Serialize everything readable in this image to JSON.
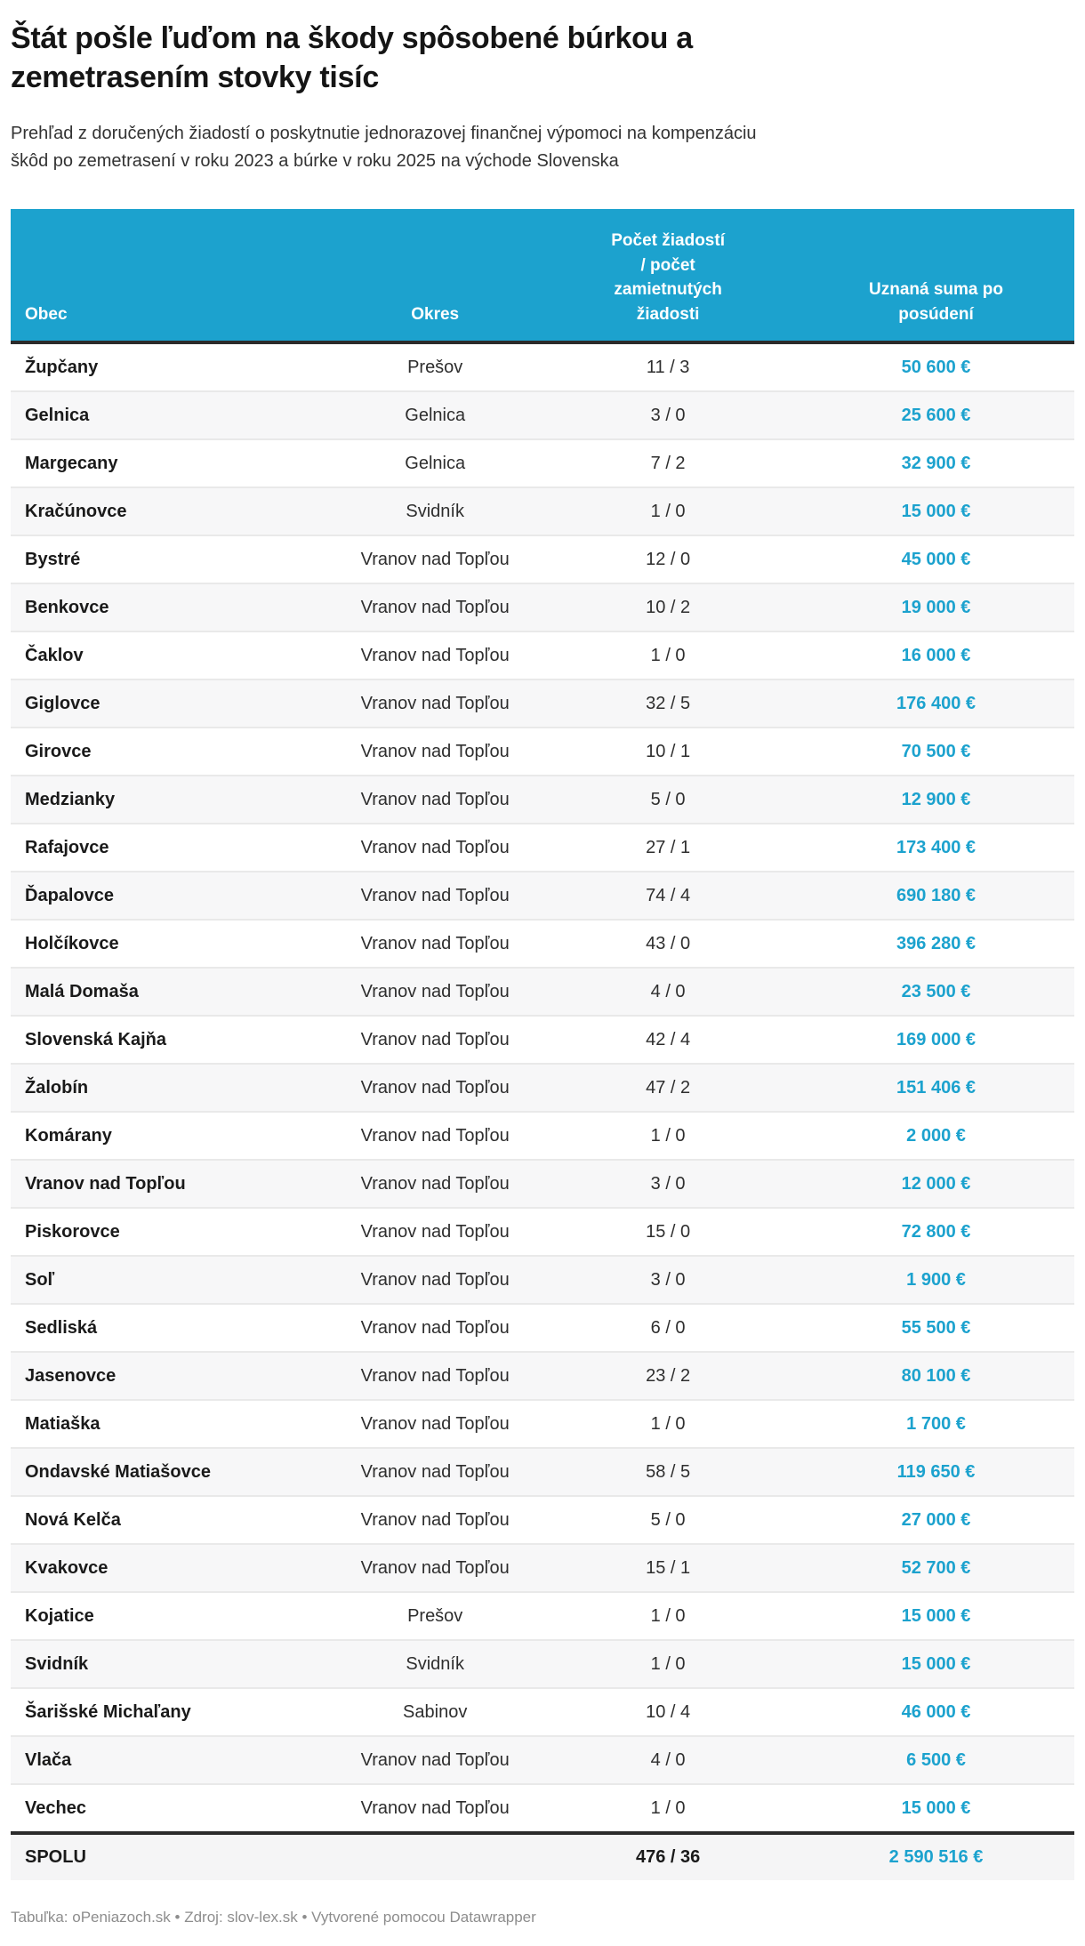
{
  "header": {
    "title_lines": [
      "Štát pošle ľuďom na škody spôsobené búrkou a",
      "zemetrasením stovky tisíc"
    ],
    "subtitle_lines": [
      "Prehľad z doručených žiadostí o poskytnutie jednorazovej finančnej výpomoci na kompenzáciu",
      "škôd po zemetrasení v roku 2023 a búrke v roku 2025 na východe Slovenska"
    ]
  },
  "table": {
    "headers": {
      "obec": "Obec",
      "okres": "Okres",
      "pocet": "Počet žiadostí\n/ počet\nzamietnutých\nžiadosti",
      "suma": "Uznaná suma po\nposúdení"
    }
  },
  "chart_data": {
    "type": "table",
    "title": "Štát pošle ľuďom na škody spôsobené búrkou a zemetrasením stovky tisíc",
    "subtitle": "Prehľad z doručených žiadostí o poskytnutie jednorazovej finančnej výpomoci na kompenzáciu škôd po zemetrasení v roku 2023 a búrke v roku 2025 na východe Slovenska",
    "columns": [
      "Obec",
      "Okres",
      "Počet žiadostí / počet zamietnutých žiadosti",
      "Uznaná suma po posúdení"
    ],
    "rows": [
      [
        "Župčany",
        "Prešov",
        "11 / 3",
        "50 600 €"
      ],
      [
        "Gelnica",
        "Gelnica",
        "3 / 0",
        "25 600 €"
      ],
      [
        "Margecany",
        "Gelnica",
        "7 / 2",
        "32 900 €"
      ],
      [
        "Kračúnovce",
        "Svidník",
        "1 / 0",
        "15 000 €"
      ],
      [
        "Bystré",
        "Vranov nad Topľou",
        "12 / 0",
        "45 000 €"
      ],
      [
        "Benkovce",
        "Vranov nad Topľou",
        "10 / 2",
        "19 000 €"
      ],
      [
        "Čaklov",
        "Vranov nad Topľou",
        "1 / 0",
        "16 000 €"
      ],
      [
        "Giglovce",
        "Vranov nad Topľou",
        "32 / 5",
        "176 400 €"
      ],
      [
        "Girovce",
        "Vranov nad Topľou",
        "10 / 1",
        "70 500 €"
      ],
      [
        "Medzianky",
        "Vranov nad Topľou",
        "5 / 0",
        "12 900 €"
      ],
      [
        "Rafajovce",
        "Vranov nad Topľou",
        "27 / 1",
        "173 400 €"
      ],
      [
        "Ďapalovce",
        "Vranov nad Topľou",
        "74 / 4",
        "690 180 €"
      ],
      [
        "Holčíkovce",
        "Vranov nad Topľou",
        "43 / 0",
        "396 280 €"
      ],
      [
        "Malá Domaša",
        "Vranov nad Topľou",
        "4 / 0",
        "23 500 €"
      ],
      [
        "Slovenská Kajňa",
        "Vranov nad Topľou",
        "42 / 4",
        "169 000 €"
      ],
      [
        "Žalobín",
        "Vranov nad Topľou",
        "47 / 2",
        "151 406 €"
      ],
      [
        "Komárany",
        "Vranov nad Topľou",
        "1 / 0",
        "2 000 €"
      ],
      [
        "Vranov nad Topľou",
        "Vranov nad Topľou",
        "3 / 0",
        "12 000 €"
      ],
      [
        "Piskorovce",
        "Vranov nad Topľou",
        "15 / 0",
        "72 800 €"
      ],
      [
        "Soľ",
        "Vranov nad Topľou",
        "3 / 0",
        "1 900 €"
      ],
      [
        "Sedliská",
        "Vranov nad Topľou",
        "6 / 0",
        "55 500 €"
      ],
      [
        "Jasenovce",
        "Vranov nad Topľou",
        "23 / 2",
        "80 100 €"
      ],
      [
        "Matiaška",
        "Vranov nad Topľou",
        "1 / 0",
        "1 700 €"
      ],
      [
        "Ondavské Matiašovce",
        "Vranov nad Topľou",
        "58 / 5",
        "119 650 €"
      ],
      [
        "Nová Kelča",
        "Vranov nad Topľou",
        "5 / 0",
        "27 000 €"
      ],
      [
        "Kvakovce",
        "Vranov nad Topľou",
        "15 / 1",
        "52 700 €"
      ],
      [
        "Kojatice",
        "Prešov",
        "1 / 0",
        "15 000 €"
      ],
      [
        "Svidník",
        "Svidník",
        "1 / 0",
        "15 000 €"
      ],
      [
        "Šarišské Michaľany",
        "Sabinov",
        "10 / 4",
        "46 000 €"
      ],
      [
        "Vlača",
        "Vranov nad Topľou",
        "4 / 0",
        "6 500 €"
      ],
      [
        "Vechec",
        "Vranov nad Topľou",
        "1 / 0",
        "15 000 €"
      ]
    ],
    "total_row": [
      "SPOLU",
      "",
      "476 / 36",
      "2 590 516 €"
    ]
  },
  "footer": {
    "table_label": "Tabuľka: ",
    "table_source": "oPeniazoch.sk",
    "separator": " • ",
    "source_label": "Zdroj: ",
    "source_link": "slov-lex.sk",
    "created_label": "Vytvorené pomocou ",
    "tool_link": "Datawrapper"
  },
  "colors": {
    "accent_blue": "#1CA2CE",
    "header_text": "#FFFFFF",
    "row_alt_bg": "#F7F7F8",
    "dark_rule": "#2B2B2B",
    "caption_gray": "#8D8D8D"
  }
}
